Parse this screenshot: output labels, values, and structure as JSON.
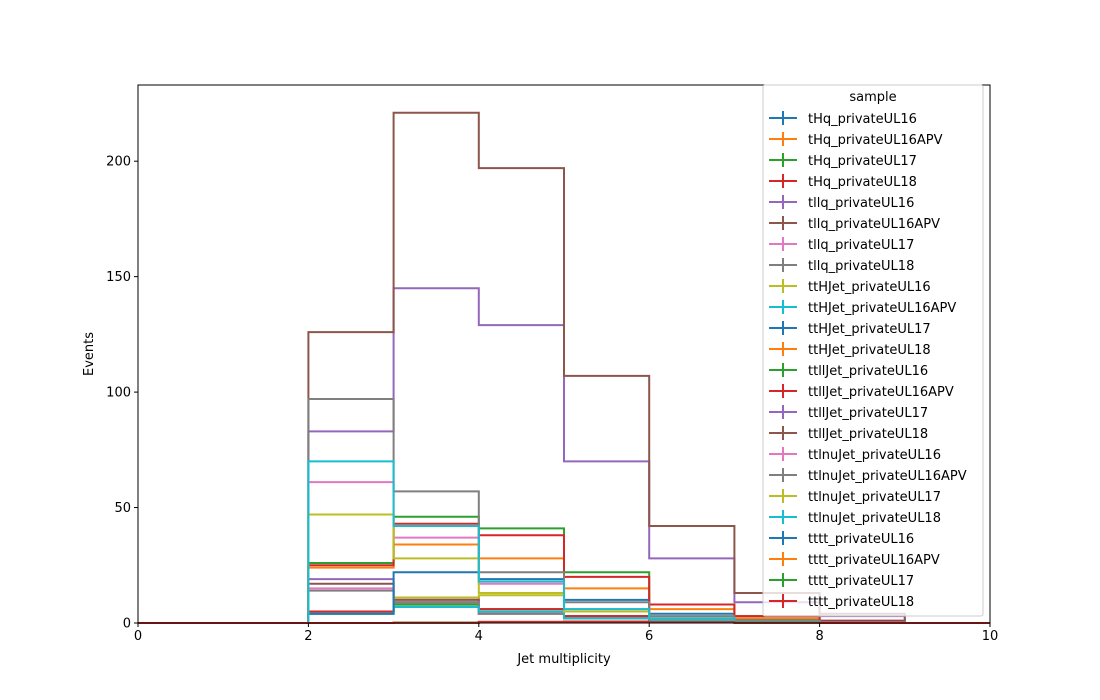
{
  "chart_data": {
    "type": "step-histogram",
    "xlabel": "Jet multiplicity",
    "ylabel": "Events",
    "xlim": [
      0,
      10
    ],
    "ylim": [
      0,
      233
    ],
    "bin_edges": [
      0,
      1,
      2,
      3,
      4,
      5,
      6,
      7,
      8,
      9,
      10
    ],
    "x_ticks": [
      0,
      2,
      4,
      6,
      8,
      10
    ],
    "y_ticks": [
      0,
      50,
      100,
      150,
      200
    ],
    "grid": false,
    "legend": {
      "title": "sample",
      "position": "top-right"
    },
    "series": [
      {
        "name": "tHq_privateUL16",
        "color": "#1f77b4",
        "values": [
          0,
          0,
          5,
          7,
          5,
          2,
          1,
          0.5,
          0.2,
          0
        ]
      },
      {
        "name": "tHq_privateUL16APV",
        "color": "#ff7f0e",
        "values": [
          0,
          0,
          5,
          8,
          5,
          3,
          1,
          0.5,
          0.2,
          0
        ]
      },
      {
        "name": "tHq_privateUL17",
        "color": "#2ca02c",
        "values": [
          0,
          0,
          5,
          8,
          6,
          3,
          1,
          0.5,
          0.2,
          0
        ]
      },
      {
        "name": "tHq_privateUL18",
        "color": "#d62728",
        "values": [
          0,
          0,
          5,
          9,
          6,
          3,
          1,
          0.5,
          0.2,
          0
        ]
      },
      {
        "name": "tllq_privateUL16",
        "color": "#9467bd",
        "values": [
          0,
          0,
          19,
          11,
          5,
          2,
          1,
          0.3,
          0.1,
          0
        ]
      },
      {
        "name": "tllq_privateUL16APV",
        "color": "#8c564b",
        "values": [
          0,
          0,
          17,
          10,
          4,
          2,
          1,
          0.3,
          0.1,
          0
        ]
      },
      {
        "name": "tllq_privateUL17",
        "color": "#e377c2",
        "values": [
          0,
          0,
          15,
          9,
          4,
          2,
          1,
          0.3,
          0.1,
          0
        ]
      },
      {
        "name": "tllq_privateUL18",
        "color": "#7f7f7f",
        "values": [
          0,
          0,
          14,
          9,
          4,
          2,
          1,
          0.3,
          0.1,
          0
        ]
      },
      {
        "name": "ttHJet_privateUL16",
        "color": "#bcbd22",
        "values": [
          0,
          0,
          4,
          11,
          12,
          5,
          2,
          1,
          0.3,
          0
        ]
      },
      {
        "name": "ttHJet_privateUL16APV",
        "color": "#17becf",
        "values": [
          0,
          0,
          4,
          7,
          5,
          2,
          1,
          0.5,
          0.1,
          0
        ]
      },
      {
        "name": "ttHJet_privateUL17",
        "color": "#1f77b4",
        "values": [
          0,
          0,
          4,
          22,
          19,
          10,
          4,
          1.5,
          0.5,
          0
        ]
      },
      {
        "name": "ttHJet_privateUL18",
        "color": "#ff7f0e",
        "values": [
          0,
          0,
          24,
          34,
          28,
          15,
          6,
          2,
          0.7,
          0
        ]
      },
      {
        "name": "ttllJet_privateUL16",
        "color": "#2ca02c",
        "values": [
          0,
          0,
          26,
          46,
          41,
          22,
          8,
          3,
          1,
          0
        ]
      },
      {
        "name": "ttllJet_privateUL16APV",
        "color": "#d62728",
        "values": [
          0,
          0,
          25,
          43,
          38,
          20,
          8,
          3,
          1,
          0
        ]
      },
      {
        "name": "ttllJet_privateUL17",
        "color": "#9467bd",
        "values": [
          0,
          0,
          83,
          145,
          129,
          70,
          28,
          9,
          3,
          0
        ]
      },
      {
        "name": "ttllJet_privateUL18",
        "color": "#8c564b",
        "values": [
          0,
          0,
          126,
          221,
          197,
          107,
          42,
          13,
          4,
          0
        ]
      },
      {
        "name": "ttlnuJet_privateUL16",
        "color": "#e377c2",
        "values": [
          0,
          0,
          61,
          37,
          17,
          6,
          2,
          0.5,
          0.2,
          0
        ]
      },
      {
        "name": "ttlnuJet_privateUL16APV",
        "color": "#7f7f7f",
        "values": [
          0,
          0,
          97,
          57,
          22,
          9,
          3,
          1,
          0.3,
          0
        ]
      },
      {
        "name": "ttlnuJet_privateUL17",
        "color": "#bcbd22",
        "values": [
          0,
          0,
          47,
          28,
          13,
          5,
          2,
          0.5,
          0.2,
          0
        ]
      },
      {
        "name": "ttlnuJet_privateUL18",
        "color": "#17becf",
        "values": [
          0,
          0,
          70,
          42,
          18,
          6,
          2,
          0.5,
          0.2,
          0
        ]
      },
      {
        "name": "tttt_privateUL16",
        "color": "#1f77b4",
        "values": [
          0,
          0,
          0,
          0.1,
          0.4,
          0.5,
          0.3,
          0.1,
          0,
          0
        ]
      },
      {
        "name": "tttt_privateUL16APV",
        "color": "#ff7f0e",
        "values": [
          0,
          0,
          0,
          0.1,
          0.4,
          0.5,
          0.3,
          0.1,
          0,
          0
        ]
      },
      {
        "name": "tttt_privateUL17",
        "color": "#2ca02c",
        "values": [
          0,
          0,
          0,
          0.1,
          0.5,
          0.6,
          0.4,
          0.1,
          0,
          0
        ]
      },
      {
        "name": "tttt_privateUL18",
        "color": "#d62728",
        "values": [
          0,
          0,
          0,
          0.1,
          0.5,
          0.6,
          0.4,
          0.1,
          0,
          0
        ]
      }
    ]
  }
}
